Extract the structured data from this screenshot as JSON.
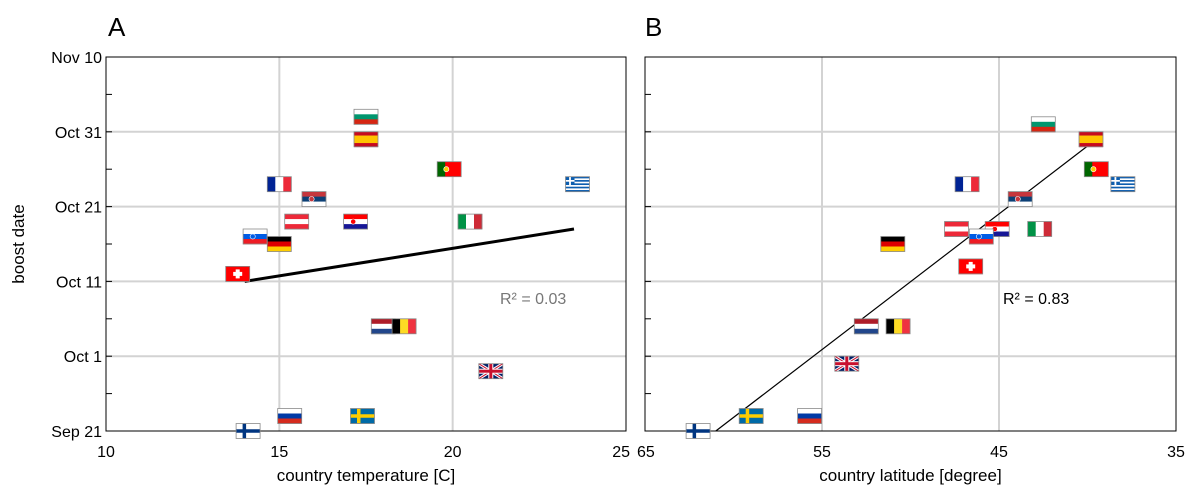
{
  "chart_data": [
    {
      "type": "scatter",
      "panel_label": "A",
      "xlabel": "country temperature [C]",
      "ylabel": "boost date",
      "xlim": [
        10,
        25
      ],
      "x_ticks": [
        10,
        15,
        20,
        25
      ],
      "ylim": [
        "Sep 21",
        "Nov 10"
      ],
      "y_ticks": [
        "Sep 21",
        "Oct 1",
        "Oct 11",
        "Oct 21",
        "Oct 31",
        "Nov 10"
      ],
      "grid": true,
      "annotation": "R² = 0.03",
      "annotation_color": "#777777",
      "fit_line": {
        "x": [
          14.0,
          23.5
        ],
        "y": [
          "Oct 11",
          "Oct 18"
        ]
      },
      "points": [
        {
          "country": "Bulgaria",
          "x": 17.5,
          "y": "Nov 2"
        },
        {
          "country": "Spain",
          "x": 17.5,
          "y": "Oct 30"
        },
        {
          "country": "Portugal",
          "x": 19.9,
          "y": "Oct 26"
        },
        {
          "country": "Greece",
          "x": 23.6,
          "y": "Oct 24"
        },
        {
          "country": "France",
          "x": 15.0,
          "y": "Oct 24"
        },
        {
          "country": "Serbia",
          "x": 16.0,
          "y": "Oct 22"
        },
        {
          "country": "Austria",
          "x": 15.5,
          "y": "Oct 19"
        },
        {
          "country": "Croatia",
          "x": 17.2,
          "y": "Oct 19"
        },
        {
          "country": "Italy",
          "x": 20.5,
          "y": "Oct 19"
        },
        {
          "country": "Slovenia",
          "x": 14.3,
          "y": "Oct 17"
        },
        {
          "country": "Germany",
          "x": 15.0,
          "y": "Oct 16"
        },
        {
          "country": "Switzerland",
          "x": 13.8,
          "y": "Oct 12"
        },
        {
          "country": "Netherlands",
          "x": 18.0,
          "y": "Oct 5"
        },
        {
          "country": "Belgium",
          "x": 18.6,
          "y": "Oct 5"
        },
        {
          "country": "United Kingdom",
          "x": 21.1,
          "y": "Sep 29"
        },
        {
          "country": "Sweden",
          "x": 17.4,
          "y": "Sep 23"
        },
        {
          "country": "Russia",
          "x": 15.3,
          "y": "Sep 23"
        },
        {
          "country": "Finland",
          "x": 14.1,
          "y": "Sep 21"
        }
      ]
    },
    {
      "type": "scatter",
      "panel_label": "B",
      "xlabel": "country latitude [degree]",
      "ylabel": "",
      "xlim": [
        65,
        35
      ],
      "x_ticks": [
        65,
        55,
        45,
        35
      ],
      "ylim": [
        "Sep 21",
        "Nov 10"
      ],
      "y_ticks": [],
      "grid": true,
      "annotation": "R² = 0.83",
      "annotation_color": "#000000",
      "fit_line": {
        "x": [
          61.0,
          39.5
        ],
        "y": [
          "Sep 21",
          "Oct 30"
        ]
      },
      "points": [
        {
          "country": "Bulgaria",
          "x": 42.5,
          "y": "Nov 1"
        },
        {
          "country": "Spain",
          "x": 39.8,
          "y": "Oct 30"
        },
        {
          "country": "Portugal",
          "x": 39.5,
          "y": "Oct 26"
        },
        {
          "country": "Greece",
          "x": 38.0,
          "y": "Oct 24"
        },
        {
          "country": "France",
          "x": 46.8,
          "y": "Oct 24"
        },
        {
          "country": "Serbia",
          "x": 43.8,
          "y": "Oct 22"
        },
        {
          "country": "Austria",
          "x": 47.4,
          "y": "Oct 18"
        },
        {
          "country": "Croatia",
          "x": 45.1,
          "y": "Oct 18"
        },
        {
          "country": "Italy",
          "x": 42.7,
          "y": "Oct 18"
        },
        {
          "country": "Slovenia",
          "x": 46.0,
          "y": "Oct 17"
        },
        {
          "country": "Germany",
          "x": 51.0,
          "y": "Oct 16"
        },
        {
          "country": "Switzerland",
          "x": 46.6,
          "y": "Oct 13"
        },
        {
          "country": "Netherlands",
          "x": 52.5,
          "y": "Oct 5"
        },
        {
          "country": "Belgium",
          "x": 50.7,
          "y": "Oct 5"
        },
        {
          "country": "United Kingdom",
          "x": 53.6,
          "y": "Sep 30"
        },
        {
          "country": "Sweden",
          "x": 59.0,
          "y": "Sep 23"
        },
        {
          "country": "Russia",
          "x": 55.7,
          "y": "Sep 23"
        },
        {
          "country": "Finland",
          "x": 62.0,
          "y": "Sep 21"
        }
      ]
    }
  ]
}
